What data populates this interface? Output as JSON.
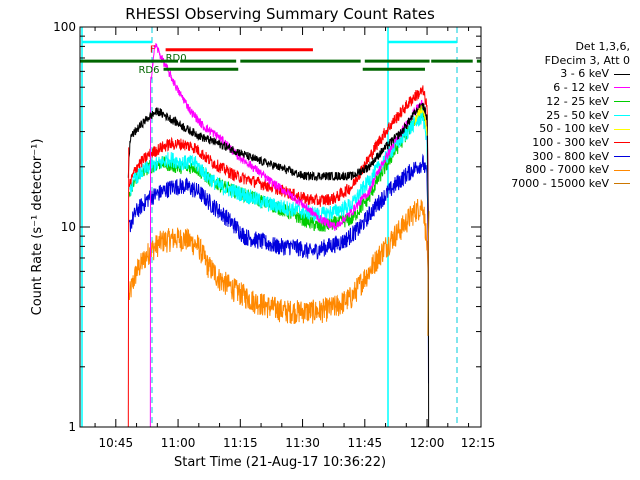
{
  "chart_data": {
    "type": "line",
    "title": "RHESSI Observing Summary Count Rates",
    "xlabel": "Start Time (21-Aug-17 10:36:22)",
    "ylabel": "Count Rate (s⁻¹ detector⁻¹)",
    "yscale": "log",
    "ylim": [
      1,
      100
    ],
    "xlim_minutes": [
      36.37,
      133.0
    ],
    "x_ticks": [
      {
        "label": "10:45",
        "minute": 45
      },
      {
        "label": "11:00",
        "minute": 60
      },
      {
        "label": "11:15",
        "minute": 75
      },
      {
        "label": "11:30",
        "minute": 90
      },
      {
        "label": "11:45",
        "minute": 105
      },
      {
        "label": "12:00",
        "minute": 120
      },
      {
        "label": "12:15",
        "minute": 135
      }
    ],
    "y_ticks": [
      {
        "label": "1",
        "value": 1
      },
      {
        "label": "10",
        "value": 10
      },
      {
        "label": "100",
        "value": 100
      }
    ],
    "legend": {
      "header": [
        "Det 1,3,6,",
        "FDecim 3, Att 0"
      ],
      "placement": "right"
    },
    "series": [
      {
        "name": "3 - 6 keV",
        "color": "#000000",
        "noise": 0.05,
        "points": [
          [
            48,
            18
          ],
          [
            48.5,
            28
          ],
          [
            52,
            34
          ],
          [
            55,
            38
          ],
          [
            58,
            35
          ],
          [
            62,
            31
          ],
          [
            66,
            28
          ],
          [
            72,
            25
          ],
          [
            78,
            22
          ],
          [
            84,
            20
          ],
          [
            90,
            18
          ],
          [
            96,
            18
          ],
          [
            102,
            18
          ],
          [
            106,
            20
          ],
          [
            110,
            25
          ],
          [
            114,
            30
          ],
          [
            117,
            37
          ],
          [
            119,
            41
          ],
          [
            120,
            35
          ],
          [
            120.4,
            0
          ]
        ]
      },
      {
        "name": "6 - 12 keV",
        "color": "#ff00ff",
        "noise": 0.05,
        "points": [
          [
            53.3,
            0
          ],
          [
            53.3,
            50
          ],
          [
            54.5,
            82
          ],
          [
            56,
            70
          ],
          [
            58,
            58
          ],
          [
            60,
            48
          ],
          [
            63,
            38
          ],
          [
            66,
            32
          ],
          [
            70,
            28
          ],
          [
            74,
            23
          ],
          [
            78,
            20
          ],
          [
            82,
            17
          ],
          [
            86,
            15
          ],
          [
            90,
            13
          ],
          [
            94,
            11
          ],
          [
            98,
            10
          ],
          [
            102,
            12
          ],
          [
            106,
            15
          ],
          [
            110,
            22
          ],
          [
            114,
            30
          ],
          [
            117,
            38
          ],
          [
            119,
            42
          ],
          [
            120,
            32
          ],
          [
            120.4,
            0
          ]
        ]
      },
      {
        "name": "12 - 25 keV",
        "color": "#00cc00",
        "noise": 0.08,
        "points": [
          [
            48.2,
            14
          ],
          [
            50,
            18
          ],
          [
            53,
            20
          ],
          [
            56,
            21
          ],
          [
            60,
            20
          ],
          [
            64,
            20
          ],
          [
            68,
            17
          ],
          [
            74,
            15
          ],
          [
            78,
            14
          ],
          [
            82,
            13
          ],
          [
            86,
            12
          ],
          [
            90,
            11
          ],
          [
            94,
            10
          ],
          [
            98,
            10.5
          ],
          [
            102,
            11
          ],
          [
            106,
            14
          ],
          [
            110,
            20
          ],
          [
            114,
            27
          ],
          [
            117,
            34
          ],
          [
            119,
            38
          ],
          [
            120,
            30
          ],
          [
            120.4,
            0
          ]
        ]
      },
      {
        "name": "25 - 50 keV",
        "color": "#00ffff",
        "noise": 0.09,
        "points": [
          [
            48.2,
            15
          ],
          [
            50,
            18
          ],
          [
            53,
            20
          ],
          [
            56,
            21
          ],
          [
            58,
            22
          ],
          [
            61,
            21
          ],
          [
            64,
            21
          ],
          [
            67,
            18
          ],
          [
            70,
            16
          ],
          [
            74,
            15
          ],
          [
            78,
            14
          ],
          [
            82,
            13
          ],
          [
            86,
            12.5
          ],
          [
            90,
            12
          ],
          [
            94,
            11.5
          ],
          [
            98,
            12
          ],
          [
            102,
            13
          ],
          [
            106,
            17
          ],
          [
            110,
            22
          ],
          [
            114,
            28
          ],
          [
            117,
            33
          ],
          [
            119,
            36
          ],
          [
            120,
            26
          ],
          [
            120.4,
            0
          ]
        ]
      },
      {
        "name": "50 - 100 keV",
        "color": "#ffff00",
        "noise": 0.06,
        "points": [
          [
            117,
            34
          ],
          [
            119,
            40
          ],
          [
            120,
            30
          ]
        ]
      },
      {
        "name": "100 - 300 keV",
        "color": "#ff0000",
        "noise": 0.07,
        "points": [
          [
            48.2,
            16
          ],
          [
            50,
            20
          ],
          [
            53,
            23
          ],
          [
            56,
            25
          ],
          [
            58,
            26
          ],
          [
            61,
            26
          ],
          [
            64,
            25
          ],
          [
            67,
            22
          ],
          [
            70,
            20
          ],
          [
            74,
            18
          ],
          [
            78,
            17
          ],
          [
            82,
            16
          ],
          [
            86,
            15
          ],
          [
            90,
            14
          ],
          [
            94,
            13.5
          ],
          [
            98,
            14
          ],
          [
            102,
            16
          ],
          [
            106,
            22
          ],
          [
            110,
            30
          ],
          [
            114,
            38
          ],
          [
            117,
            45
          ],
          [
            119,
            48
          ],
          [
            120,
            40
          ],
          [
            120.4,
            0
          ]
        ]
      },
      {
        "name": "300 - 800 keV",
        "color": "#0000dd",
        "noise": 0.1,
        "points": [
          [
            48.2,
            10
          ],
          [
            50,
            12
          ],
          [
            53,
            14
          ],
          [
            56,
            15
          ],
          [
            59,
            16
          ],
          [
            62,
            16
          ],
          [
            65,
            15
          ],
          [
            68,
            13
          ],
          [
            72,
            11
          ],
          [
            76,
            9
          ],
          [
            80,
            8.5
          ],
          [
            84,
            8
          ],
          [
            88,
            8
          ],
          [
            92,
            7.5
          ],
          [
            96,
            8
          ],
          [
            100,
            8.5
          ],
          [
            104,
            10
          ],
          [
            108,
            13
          ],
          [
            112,
            16
          ],
          [
            116,
            19
          ],
          [
            119,
            21
          ],
          [
            120,
            18
          ],
          [
            120.4,
            0
          ]
        ]
      },
      {
        "name": "800 - 7000 keV",
        "color": "#ff8800",
        "noise": 0.14,
        "points": [
          [
            48.2,
            4.5
          ],
          [
            50,
            6
          ],
          [
            53,
            7.5
          ],
          [
            56,
            8.5
          ],
          [
            59,
            8.8
          ],
          [
            62,
            8.7
          ],
          [
            65,
            8
          ],
          [
            67,
            6.5
          ],
          [
            70,
            5.5
          ],
          [
            74,
            4.8
          ],
          [
            78,
            4.3
          ],
          [
            82,
            4
          ],
          [
            86,
            3.8
          ],
          [
            90,
            3.8
          ],
          [
            94,
            3.8
          ],
          [
            98,
            4
          ],
          [
            102,
            4.5
          ],
          [
            106,
            6
          ],
          [
            110,
            8
          ],
          [
            114,
            10
          ],
          [
            117,
            12
          ],
          [
            119,
            13
          ],
          [
            120,
            8
          ],
          [
            120.4,
            3
          ]
        ]
      },
      {
        "name": "7000 - 15000 keV",
        "color": "#cc7700",
        "noise": 0.05,
        "points": [
          [
            120.2,
            3
          ],
          [
            120.3,
            8
          ],
          [
            120.5,
            13
          ]
        ]
      }
    ],
    "lines": [
      {
        "name": "F",
        "color": "#ff0000",
        "value": 77,
        "x": [
          57,
          92.5
        ]
      },
      {
        "name": "RD0",
        "color": "#006600",
        "value": 67.5,
        "x": [
          36.37,
          133
        ]
      },
      {
        "name": "RD6",
        "color": "#006600",
        "value": 61.5,
        "x": [
          56.5,
          74.5
        ]
      }
    ]
  }
}
